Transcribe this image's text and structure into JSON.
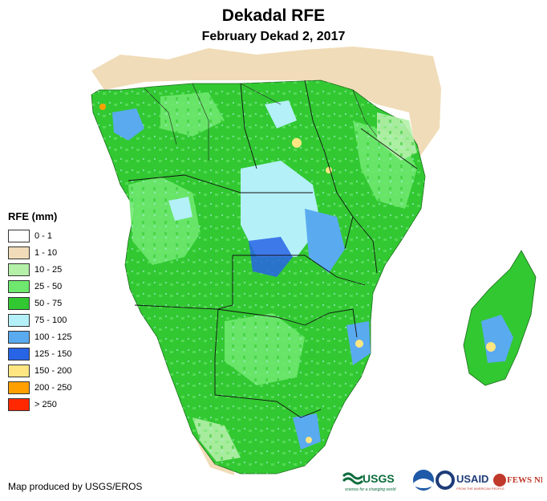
{
  "title": "Dekadal RFE",
  "subtitle": "February Dekad 2, 2017",
  "legend": {
    "title": "RFE (mm)",
    "items": [
      {
        "label": "0 - 1",
        "color": "#ffffff"
      },
      {
        "label": "1 - 10",
        "color": "#f0dcb8"
      },
      {
        "label": "10 - 25",
        "color": "#b4f0a8"
      },
      {
        "label": "25 - 50",
        "color": "#6ee86e"
      },
      {
        "label": "50 - 75",
        "color": "#32c832"
      },
      {
        "label": "75 - 100",
        "color": "#b4f0f8"
      },
      {
        "label": "100 - 125",
        "color": "#5aaaf0"
      },
      {
        "label": "125 - 150",
        "color": "#2864e6"
      },
      {
        "label": "150 - 200",
        "color": "#ffe682"
      },
      {
        "label": "200 - 250",
        "color": "#ffa000"
      },
      {
        "label": "> 250",
        "color": "#ff2800"
      }
    ]
  },
  "credit": "Map produced by USGS/EROS",
  "logos": {
    "usgs": "USGS",
    "usgs_tagline": "science for a changing world",
    "noaa": "NOAA",
    "usaid": "USAID",
    "usaid_tagline": "FROM THE AMERICAN PEOPLE",
    "fewsnet": "FEWS NET"
  }
}
